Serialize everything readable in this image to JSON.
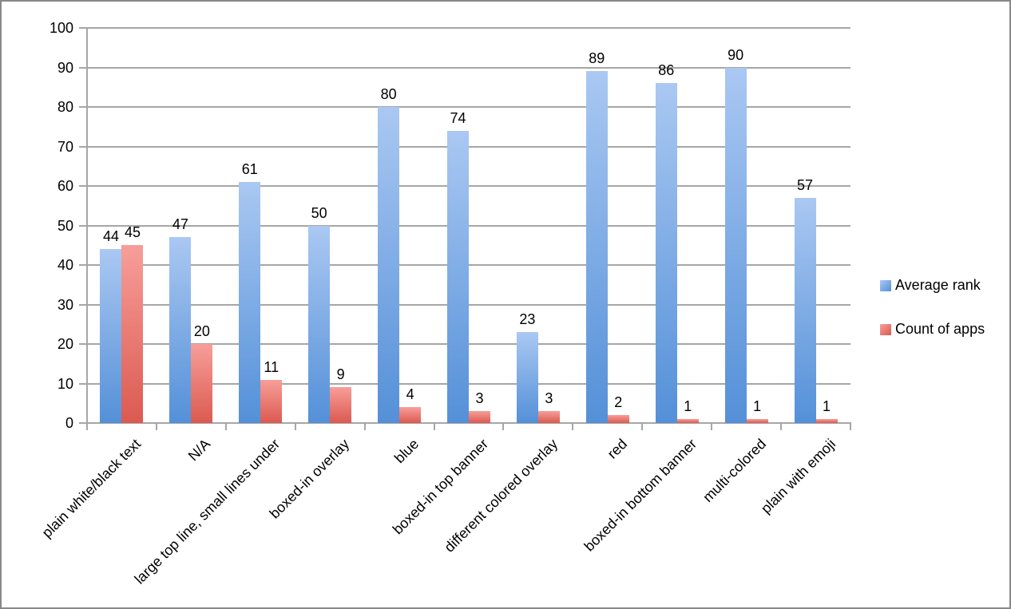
{
  "chart_data": {
    "type": "bar",
    "title": "",
    "categories": [
      "plain white/black text",
      "N/A",
      "large top line, small lines under",
      "boxed-in overlay",
      "blue",
      "boxed-in top banner",
      "different colored overlay",
      "red",
      "boxed-in bottom banner",
      "multi-colored",
      "plain with emoji"
    ],
    "series": [
      {
        "name": "Average rank",
        "values": [
          44,
          47,
          61,
          50,
          80,
          74,
          23,
          89,
          86,
          90,
          57
        ],
        "color_top": "#aac8f2",
        "color_bottom": "#5490d8"
      },
      {
        "name": "Count of apps",
        "values": [
          45,
          20,
          11,
          9,
          4,
          3,
          3,
          2,
          1,
          1,
          1
        ],
        "color_top": "#f79e99",
        "color_bottom": "#db5a50"
      }
    ],
    "data_labels": true,
    "xlabel": "",
    "ylabel": "",
    "ylim": [
      0,
      100
    ],
    "ytick_step": 10,
    "grid": true,
    "gridline_color": "#a6a6a6",
    "legend_position": "right"
  }
}
